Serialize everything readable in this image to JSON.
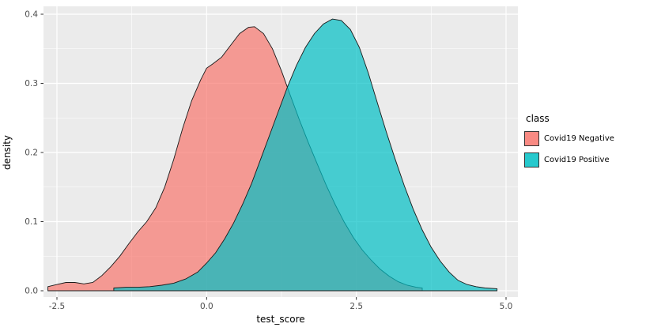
{
  "chart_data": {
    "type": "area",
    "subtype": "overlapping-density",
    "xlabel": "test_score",
    "ylabel": "density",
    "x_ticks": [
      -2.5,
      0.0,
      2.5,
      5.0
    ],
    "x_tick_labels": [
      "-2.5",
      "0.0",
      "2.5",
      "5.0"
    ],
    "y_ticks": [
      0.0,
      0.1,
      0.2,
      0.3,
      0.4
    ],
    "y_tick_labels": [
      "0.0",
      "0.1",
      "0.2",
      "0.3",
      "0.4"
    ],
    "xlim": [
      -2.75,
      5.25
    ],
    "ylim": [
      0,
      0.41
    ],
    "panel_background": "#EBEBEB",
    "gridline_color": "#FFFFFF",
    "tick_label_color": "#4D4D4D",
    "outline_color": "#1a1a1a",
    "fill_opacity": 0.7,
    "grid": true,
    "legend": {
      "title": "class",
      "position": "right",
      "items": [
        {
          "label": "Covid19 Negative",
          "color": "#F8766D"
        },
        {
          "label": "Covid19 Positive",
          "color": "#00BFC4"
        }
      ]
    },
    "series": [
      {
        "name": "Covid19 Negative",
        "color": "#F8766D",
        "points": [
          [
            -2.65,
            0.006
          ],
          [
            -2.5,
            0.009
          ],
          [
            -2.35,
            0.012
          ],
          [
            -2.2,
            0.012
          ],
          [
            -2.05,
            0.01
          ],
          [
            -1.9,
            0.012
          ],
          [
            -1.75,
            0.022
          ],
          [
            -1.6,
            0.035
          ],
          [
            -1.45,
            0.05
          ],
          [
            -1.3,
            0.068
          ],
          [
            -1.15,
            0.085
          ],
          [
            -1.0,
            0.1
          ],
          [
            -0.85,
            0.12
          ],
          [
            -0.7,
            0.15
          ],
          [
            -0.55,
            0.19
          ],
          [
            -0.4,
            0.235
          ],
          [
            -0.25,
            0.275
          ],
          [
            -0.1,
            0.305
          ],
          [
            0.0,
            0.322
          ],
          [
            0.1,
            0.328
          ],
          [
            0.25,
            0.338
          ],
          [
            0.4,
            0.355
          ],
          [
            0.55,
            0.372
          ],
          [
            0.7,
            0.381
          ],
          [
            0.8,
            0.382
          ],
          [
            0.95,
            0.372
          ],
          [
            1.1,
            0.35
          ],
          [
            1.25,
            0.318
          ],
          [
            1.4,
            0.282
          ],
          [
            1.55,
            0.247
          ],
          [
            1.7,
            0.214
          ],
          [
            1.85,
            0.183
          ],
          [
            2.0,
            0.152
          ],
          [
            2.15,
            0.124
          ],
          [
            2.3,
            0.099
          ],
          [
            2.45,
            0.077
          ],
          [
            2.6,
            0.059
          ],
          [
            2.75,
            0.044
          ],
          [
            2.9,
            0.031
          ],
          [
            3.05,
            0.021
          ],
          [
            3.2,
            0.013
          ],
          [
            3.35,
            0.008
          ],
          [
            3.5,
            0.005
          ],
          [
            3.6,
            0.004
          ]
        ]
      },
      {
        "name": "Covid19 Positive",
        "color": "#00BFC4",
        "points": [
          [
            -1.55,
            0.004
          ],
          [
            -1.35,
            0.005
          ],
          [
            -1.15,
            0.005
          ],
          [
            -0.95,
            0.006
          ],
          [
            -0.75,
            0.008
          ],
          [
            -0.55,
            0.011
          ],
          [
            -0.35,
            0.017
          ],
          [
            -0.15,
            0.027
          ],
          [
            0.0,
            0.04
          ],
          [
            0.15,
            0.055
          ],
          [
            0.3,
            0.075
          ],
          [
            0.45,
            0.098
          ],
          [
            0.6,
            0.125
          ],
          [
            0.75,
            0.155
          ],
          [
            0.9,
            0.19
          ],
          [
            1.05,
            0.225
          ],
          [
            1.2,
            0.26
          ],
          [
            1.35,
            0.295
          ],
          [
            1.5,
            0.326
          ],
          [
            1.65,
            0.352
          ],
          [
            1.8,
            0.372
          ],
          [
            1.95,
            0.386
          ],
          [
            2.1,
            0.393
          ],
          [
            2.25,
            0.391
          ],
          [
            2.4,
            0.378
          ],
          [
            2.55,
            0.352
          ],
          [
            2.7,
            0.315
          ],
          [
            2.85,
            0.272
          ],
          [
            3.0,
            0.23
          ],
          [
            3.15,
            0.19
          ],
          [
            3.3,
            0.152
          ],
          [
            3.45,
            0.118
          ],
          [
            3.6,
            0.088
          ],
          [
            3.75,
            0.063
          ],
          [
            3.9,
            0.043
          ],
          [
            4.05,
            0.027
          ],
          [
            4.2,
            0.015
          ],
          [
            4.35,
            0.009
          ],
          [
            4.5,
            0.006
          ],
          [
            4.65,
            0.004
          ],
          [
            4.85,
            0.003
          ]
        ]
      }
    ]
  }
}
